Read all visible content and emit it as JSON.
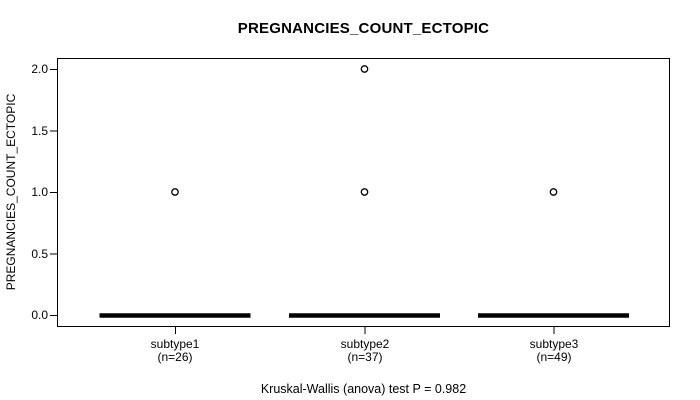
{
  "chart_data": {
    "type": "boxplot",
    "title": "PREGNANCIES_COUNT_ECTOPIC",
    "ylabel": "PREGNANCIES_COUNT_ECTOPIC",
    "xlabel": "",
    "ylim": [
      0.0,
      2.0
    ],
    "yticks": [
      0.0,
      0.5,
      1.0,
      1.5,
      2.0
    ],
    "ytick_labels": [
      "0.0",
      "0.5",
      "1.0",
      "1.5",
      "2.0"
    ],
    "grid": false,
    "groups": [
      {
        "label": "subtype1",
        "sublabel": "(n=26)",
        "n": 26,
        "median": 0.0,
        "q1": 0.0,
        "q3": 0.0,
        "whisker_low": 0.0,
        "whisker_high": 0.0,
        "outliers": [
          1.0
        ]
      },
      {
        "label": "subtype2",
        "sublabel": "(n=37)",
        "n": 37,
        "median": 0.0,
        "q1": 0.0,
        "q3": 0.0,
        "whisker_low": 0.0,
        "whisker_high": 0.0,
        "outliers": [
          1.0,
          2.0
        ]
      },
      {
        "label": "subtype3",
        "sublabel": "(n=49)",
        "n": 49,
        "median": 0.0,
        "q1": 0.0,
        "q3": 0.0,
        "whisker_low": 0.0,
        "whisker_high": 0.0,
        "outliers": [
          1.0
        ]
      }
    ],
    "stat_test": "Kruskal-Wallis (anova) test P = 0.982",
    "colors": {
      "line": "#000000",
      "background": "#ffffff",
      "text": "#000000"
    }
  }
}
